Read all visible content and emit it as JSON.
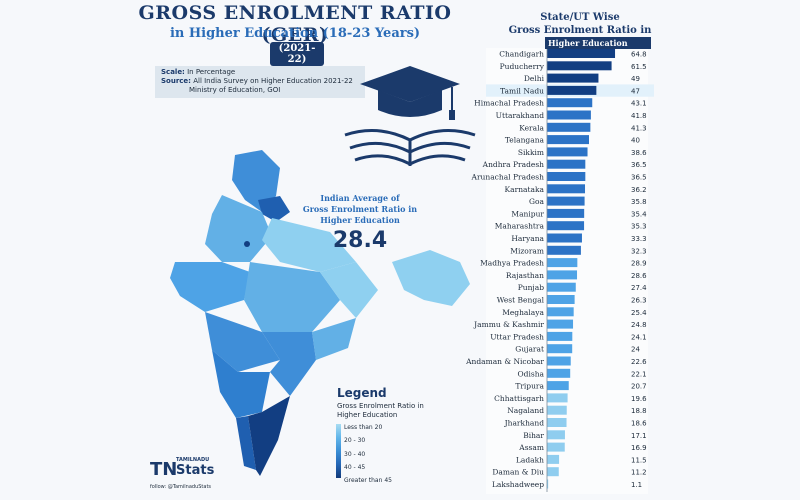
{
  "header": {
    "title": "GROSS ENROLMENT RATIO (GER)",
    "subtitle": "in Higher Education (18-23 Years)",
    "year": "(2021-22)"
  },
  "info": {
    "scale_label": "Scale:",
    "scale_value": "In Percentage",
    "source_label": "Source:",
    "source_value": "All India Survey on Higher Education 2021-22",
    "source_value2": "Ministry of Education, GOI"
  },
  "average": {
    "label_line1": "Indian Average of",
    "label_line2": "Gross Enrolment Ratio in",
    "label_line3": "Higher Education",
    "value": "28.4"
  },
  "legend": {
    "title": "Legend",
    "subtitle": "Gross Enrolment Ratio in Higher Education",
    "items": [
      "Less than 20",
      "20 - 30",
      "30 - 40",
      "40 - 45",
      "Greater than 45"
    ]
  },
  "logo": {
    "tn": "TN",
    "small": "TAMILNADU",
    "stats": "Stats",
    "follow": "follow: @TamilnaduStats"
  },
  "colors": {
    "title": "#1b3a6b",
    "subtitle": "#2a6cb8",
    "bar_dark": "#123e82",
    "bar_mid": "#2c73c6",
    "bar_light": "#4ea3e6",
    "bar_lightest": "#8fcdef",
    "map_dark": "#1f5fb0",
    "map_mid": "#3f8ed8",
    "map_light": "#8fd0f0"
  },
  "panel": {
    "title_line1": "State/UT Wise",
    "title_line2": "Gross Enrolment Ratio in",
    "title_line3": "Higher Education"
  },
  "chart_data": {
    "type": "bar",
    "orientation": "horizontal",
    "title": "State/UT Wise Gross Enrolment Ratio in Higher Education",
    "highlighted_category": "Tamil Nadu",
    "categories": [
      "Chandigarh",
      "Puducherry",
      "Delhi",
      "Tamil Nadu",
      "Himachal Pradesh",
      "Uttarakhand",
      "Kerala",
      "Telangana",
      "Sikkim",
      "Andhra Pradesh",
      "Arunachal Pradesh",
      "Karnataka",
      "Goa",
      "Manipur",
      "Maharashtra",
      "Haryana",
      "Mizoram",
      "Madhya Pradesh",
      "Rajasthan",
      "Punjab",
      "West Bengal",
      "Meghalaya",
      "Jammu & Kashmir",
      "Uttar Pradesh",
      "Gujarat",
      "Andaman & Nicobar",
      "Odisha",
      "Tripura",
      "Chhattisgarh",
      "Nagaland",
      "Jharkhand",
      "Bihar",
      "Assam",
      "Ladakh",
      "Daman & Diu",
      "Lakshadweep"
    ],
    "values": [
      64.8,
      61.5,
      49,
      47,
      43.1,
      41.8,
      41.3,
      40,
      38.6,
      36.5,
      36.5,
      36.2,
      35.8,
      35.4,
      35.3,
      33.3,
      32.3,
      28.9,
      28.6,
      27.4,
      26.3,
      25.4,
      24.8,
      24.1,
      24,
      22.6,
      22.1,
      20.7,
      19.6,
      18.8,
      18.6,
      17.1,
      16.9,
      11.5,
      11.2,
      1.1
    ],
    "labels": [
      "64.8",
      "61.5",
      "49",
      "47",
      "43.1",
      "41.8",
      "41.3",
      "40",
      "38.6",
      "36.5",
      "36.5",
      "36.2",
      "35.8",
      "35.4",
      "35.3",
      "33.3",
      "32.3",
      "28.9",
      "28.6",
      "27.4",
      "26.3",
      "25.4",
      "24.8",
      "24.1",
      "24",
      "22.6",
      "22.1",
      "20.7",
      "19.6",
      "18.8",
      "18.6",
      "17.1",
      "16.9",
      "11.5",
      "11.2",
      "1.1"
    ],
    "xlim": [
      0,
      70
    ]
  }
}
